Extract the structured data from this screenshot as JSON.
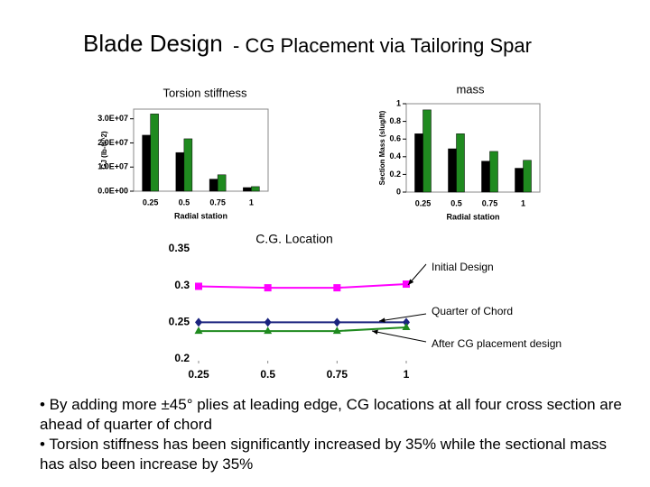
{
  "title_main": "Blade Design",
  "title_sub": "- CG Placement via Tailoring Spar",
  "chart_data": [
    {
      "type": "bar",
      "title": "Torsion stiffness",
      "ylabel": "GJ (lb-ft^2)",
      "xlabel": "Radial station",
      "categories": [
        "0.25",
        "0.5",
        "0.75",
        "1"
      ],
      "series": [
        {
          "color": "#000000",
          "values": [
            23200000,
            16000000,
            5000000,
            1500000
          ]
        },
        {
          "color": "#1f8a1f",
          "values": [
            32000000,
            21700000,
            6800000,
            1900000
          ]
        }
      ],
      "ylim": [
        0,
        34000000
      ],
      "yticks": [
        {
          "value": 0,
          "label": "0.0E+00"
        },
        {
          "value": 10000000,
          "label": "1.0E+07"
        },
        {
          "value": 20000000,
          "label": "2.0E+07"
        },
        {
          "value": 30000000,
          "label": "3.0E+07"
        }
      ]
    },
    {
      "type": "bar",
      "title": "mass",
      "ylabel": "Section Mass (slug/ft)",
      "xlabel": "Radial station",
      "categories": [
        "0.25",
        "0.5",
        "0.75",
        "1"
      ],
      "series": [
        {
          "color": "#000000",
          "values": [
            0.66,
            0.49,
            0.35,
            0.27
          ]
        },
        {
          "color": "#1f8a1f",
          "values": [
            0.93,
            0.66,
            0.46,
            0.36
          ]
        }
      ],
      "ylim": [
        0,
        1
      ],
      "yticks": [
        0,
        0.2,
        0.4,
        0.6,
        0.8,
        1
      ]
    },
    {
      "type": "line",
      "title": "C.G. Location",
      "x": [
        0.25,
        0.5,
        0.75,
        1
      ],
      "xlim": [
        0.25,
        1
      ],
      "xticks": [
        0.25,
        0.5,
        0.75,
        1
      ],
      "ylim": [
        0.2,
        0.35
      ],
      "yticks": [
        0.2,
        0.25,
        0.3,
        0.35
      ],
      "series": [
        {
          "name": "Initial Design",
          "color": "#ff00ff",
          "marker": "square",
          "values": [
            0.299,
            0.297,
            0.297,
            0.302
          ]
        },
        {
          "name": "Quarter of Chord",
          "color": "#1a237e",
          "marker": "diamond",
          "values": [
            0.25,
            0.25,
            0.25,
            0.25
          ]
        },
        {
          "name": "After CG placement design",
          "color": "#1f8a1f",
          "marker": "triangle",
          "values": [
            0.238,
            0.238,
            0.238,
            0.243
          ]
        }
      ]
    }
  ],
  "bullets": [
    "• By adding more ±45° plies at leading edge, CG locations at all four cross section are  ahead of quarter of chord",
    "• Torsion stiffness has been significantly increased by 35% while the sectional mass has also been increase by 35%"
  ]
}
